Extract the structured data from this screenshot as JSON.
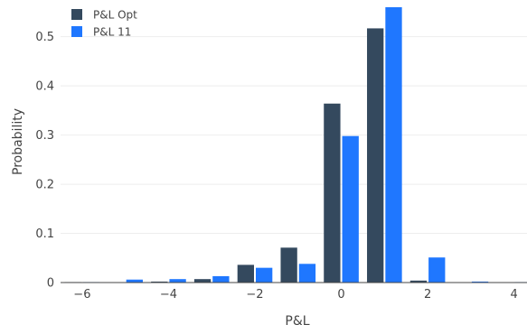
{
  "chart_data": {
    "type": "bar",
    "xlabel": "P&L",
    "ylabel": "Probability",
    "xlim": [
      -6.5,
      4.3
    ],
    "ylim": [
      0,
      0.56
    ],
    "grid": true,
    "legend": "top-left",
    "x_ticks": [
      {
        "value": -6,
        "label": "−6"
      },
      {
        "value": -4,
        "label": "−4"
      },
      {
        "value": -2,
        "label": "−2"
      },
      {
        "value": 0,
        "label": "0"
      },
      {
        "value": 2,
        "label": "2"
      },
      {
        "value": 4,
        "label": "4"
      }
    ],
    "y_ticks": [
      {
        "value": 0,
        "label": "0"
      },
      {
        "value": 0.1,
        "label": "0.1"
      },
      {
        "value": 0.2,
        "label": "0.2"
      },
      {
        "value": 0.3,
        "label": "0.3"
      },
      {
        "value": 0.4,
        "label": "0.4"
      },
      {
        "value": 0.5,
        "label": "0.5"
      }
    ],
    "x": [
      -6,
      -5,
      -4,
      -3,
      -2,
      -1,
      0,
      1,
      2,
      3,
      4
    ],
    "series": [
      {
        "name": "P&L Opt",
        "color": "#34495e",
        "values": [
          0.001,
          0.0,
          0.002,
          0.007,
          0.036,
          0.071,
          0.364,
          0.517,
          0.004,
          0.0,
          0.0
        ]
      },
      {
        "name": "P&L 11",
        "color": "#1f77ff",
        "values": [
          0.001,
          0.006,
          0.007,
          0.013,
          0.03,
          0.038,
          0.298,
          0.56,
          0.051,
          0.002,
          0.001
        ]
      }
    ]
  }
}
